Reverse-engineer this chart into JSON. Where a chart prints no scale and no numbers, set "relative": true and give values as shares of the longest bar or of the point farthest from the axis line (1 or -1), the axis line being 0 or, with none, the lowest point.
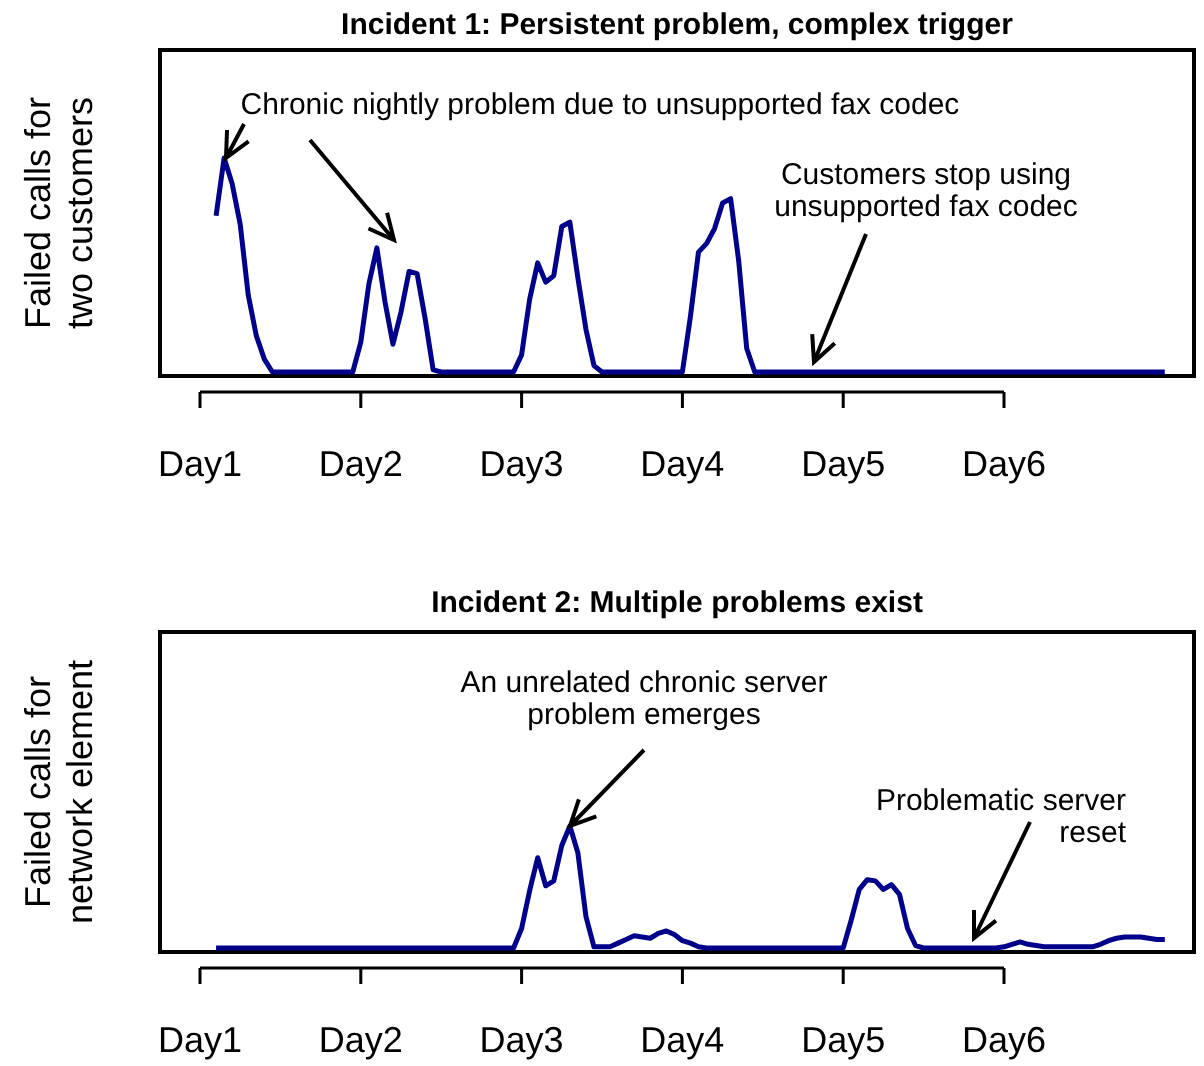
{
  "chart_data": [
    {
      "type": "line",
      "title": "Incident 1: Persistent problem, complex trigger",
      "ylabel": "Failed calls for\ntwo customers",
      "relative": true,
      "grid": false,
      "marker": "none",
      "line_style": "solid",
      "categories": [
        "Day1",
        null,
        null,
        null,
        null,
        null,
        null,
        null,
        null,
        null,
        null,
        null,
        null,
        null,
        null,
        null,
        null,
        null,
        null,
        null,
        "Day2",
        null,
        null,
        null,
        null,
        null,
        null,
        null,
        null,
        null,
        null,
        null,
        null,
        null,
        null,
        null,
        null,
        null,
        null,
        null,
        "Day3",
        null,
        null,
        null,
        null,
        null,
        null,
        null,
        null,
        null,
        null,
        null,
        null,
        null,
        null,
        null,
        null,
        null,
        null,
        null,
        "Day4",
        null,
        null,
        null,
        null,
        null,
        null,
        null,
        null,
        null,
        null,
        null,
        null,
        null,
        null,
        null,
        null,
        null,
        null,
        null,
        "Day5",
        null,
        null,
        null,
        null,
        null,
        null,
        null,
        null,
        null,
        null,
        null,
        null,
        null,
        null,
        null,
        null,
        null,
        null,
        null,
        "Day6",
        null,
        null,
        null,
        null,
        null,
        null,
        null,
        null,
        null,
        null,
        null,
        null,
        null,
        null,
        null,
        null,
        null,
        null,
        null,
        null
      ],
      "series": [
        {
          "color": "#00008b",
          "values": [
            null,
            null,
            0.73,
            1,
            0.88,
            0.69,
            0.36,
            0.17,
            0.06,
            0,
            0,
            0,
            0,
            0,
            0,
            0,
            0,
            0,
            0,
            0,
            0.14,
            0.41,
            0.58,
            0.33,
            0.13,
            0.28,
            0.47,
            0.46,
            0.25,
            0.01,
            0,
            0,
            0,
            0,
            0,
            0,
            0,
            0,
            0,
            0,
            0.08,
            0.34,
            0.51,
            0.42,
            0.45,
            0.68,
            0.7,
            0.44,
            0.2,
            0.03,
            0,
            0,
            0,
            0,
            0,
            0,
            0,
            0,
            0,
            0,
            0,
            0.26,
            0.56,
            0.6,
            0.67,
            0.79,
            0.81,
            0.52,
            0.11,
            0,
            0,
            0,
            0,
            0,
            0,
            0,
            0,
            0,
            0,
            0,
            0,
            0,
            0,
            0,
            0,
            0,
            0,
            0,
            0,
            0,
            0,
            0,
            0,
            0,
            0,
            0,
            0,
            0,
            0,
            0,
            0,
            0,
            0,
            0,
            0,
            0,
            0,
            0,
            0,
            0,
            0,
            0,
            0,
            0,
            0,
            0,
            0,
            0,
            0,
            0,
            0
          ]
        }
      ],
      "annotations": [
        "Chronic nightly problem due to unsupported fax codec",
        "Customers stop using\nunsupported fax codec"
      ]
    },
    {
      "type": "line",
      "title": "Incident 2: Multiple problems exist",
      "ylabel": "Failed calls for\nnetwork element",
      "relative": true,
      "grid": false,
      "marker": "none",
      "line_style": "solid",
      "categories": [
        "Day1",
        null,
        null,
        null,
        null,
        null,
        null,
        null,
        null,
        null,
        null,
        null,
        null,
        null,
        null,
        null,
        null,
        null,
        null,
        null,
        "Day2",
        null,
        null,
        null,
        null,
        null,
        null,
        null,
        null,
        null,
        null,
        null,
        null,
        null,
        null,
        null,
        null,
        null,
        null,
        null,
        "Day3",
        null,
        null,
        null,
        null,
        null,
        null,
        null,
        null,
        null,
        null,
        null,
        null,
        null,
        null,
        null,
        null,
        null,
        null,
        null,
        "Day4",
        null,
        null,
        null,
        null,
        null,
        null,
        null,
        null,
        null,
        null,
        null,
        null,
        null,
        null,
        null,
        null,
        null,
        null,
        null,
        "Day5",
        null,
        null,
        null,
        null,
        null,
        null,
        null,
        null,
        null,
        null,
        null,
        null,
        null,
        null,
        null,
        null,
        null,
        null,
        null,
        "Day6",
        null,
        null,
        null,
        null,
        null,
        null,
        null,
        null,
        null,
        null,
        null,
        null,
        null,
        null,
        null,
        null,
        null,
        null,
        null,
        null
      ],
      "series": [
        {
          "color": "#00008b",
          "values": [
            null,
            null,
            0,
            0,
            0,
            0,
            0,
            0,
            0,
            0,
            0,
            0,
            0,
            0,
            0,
            0,
            0,
            0,
            0,
            0,
            0,
            0,
            0,
            0,
            0,
            0,
            0,
            0,
            0,
            0,
            0,
            0,
            0,
            0,
            0,
            0,
            0,
            0,
            0,
            0,
            0.16,
            0.47,
            0.74,
            0.51,
            0.55,
            0.84,
            1,
            0.78,
            0.26,
            0.01,
            0.01,
            0.01,
            0.04,
            0.07,
            0.1,
            0.09,
            0.08,
            0.12,
            0.14,
            0.11,
            0.06,
            0.04,
            0.01,
            0,
            0,
            0,
            0,
            0,
            0,
            0,
            0,
            0,
            0,
            0,
            0,
            0,
            0,
            0,
            0,
            0,
            0,
            0.23,
            0.48,
            0.56,
            0.55,
            0.48,
            0.52,
            0.44,
            0.16,
            0.02,
            0,
            0,
            0,
            0,
            0,
            0,
            0,
            0,
            0,
            0,
            0.01,
            0.03,
            0.05,
            0.03,
            0.02,
            0.01,
            0.01,
            0.01,
            0.01,
            0.01,
            0.01,
            0.01,
            0.03,
            0.06,
            0.08,
            0.09,
            0.09,
            0.09,
            0.08,
            0.07,
            0.07
          ]
        }
      ],
      "annotations": [
        "An unrelated chronic server\nproblem emerges",
        "Problematic server\nreset"
      ]
    }
  ]
}
